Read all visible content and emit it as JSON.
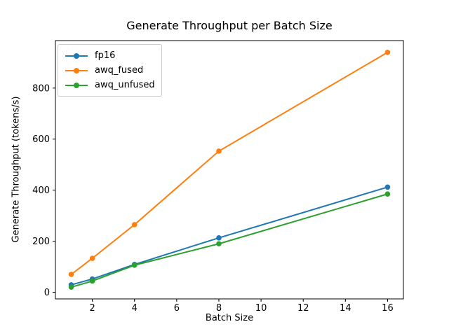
{
  "chart_data": {
    "type": "line",
    "title": "Generate Throughput per Batch Size",
    "xlabel": "Batch Size",
    "ylabel": "Generate Throughput (tokens/s)",
    "x": [
      1,
      2,
      4,
      8,
      16
    ],
    "series": [
      {
        "name": "fp16",
        "color": "#1f77b4",
        "values": [
          29,
          52,
          109,
          213,
          412
        ]
      },
      {
        "name": "awq_fused",
        "color": "#ff7f0e",
        "values": [
          70,
          133,
          265,
          553,
          940
        ]
      },
      {
        "name": "awq_unfused",
        "color": "#2ca02c",
        "values": [
          20,
          44,
          106,
          190,
          385
        ]
      }
    ],
    "xticks": [
      2,
      4,
      6,
      8,
      10,
      12,
      14,
      16
    ],
    "yticks": [
      0,
      200,
      400,
      600,
      800
    ],
    "xlim": [
      0.25,
      16.75
    ],
    "ylim": [
      -26,
      986
    ],
    "legend_position": "upper left",
    "grid": false,
    "marker": "o",
    "background_color": "#ffffff",
    "spine_color": "#000000"
  }
}
